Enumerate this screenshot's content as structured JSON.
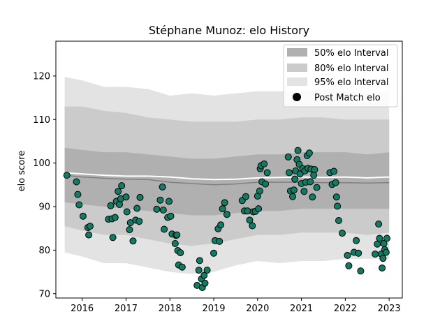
{
  "chart_data": {
    "type": "scatter",
    "title": "Stéphane Munoz: elo History",
    "xlabel": "",
    "ylabel": "elo score",
    "xlim": [
      2015.4,
      2023.3
    ],
    "ylim": [
      69,
      128
    ],
    "x_ticks": [
      2016,
      2017,
      2018,
      2019,
      2020,
      2021,
      2022,
      2023
    ],
    "y_ticks": [
      70,
      80,
      90,
      100,
      110,
      120
    ],
    "grid": false,
    "legend_position": "top-right",
    "legend": [
      {
        "label": "50% elo Interval",
        "color": "#b0b0b0"
      },
      {
        "label": "80% elo Interval",
        "color": "#cbcbcb"
      },
      {
        "label": "95% elo Interval",
        "color": "#e3e3e3"
      },
      {
        "label": "Post Match elo",
        "color": "#000000"
      }
    ],
    "colors": {
      "points": "#137a63",
      "point_edge": "#000000",
      "median": "#808080",
      "mean": "#ffffff"
    },
    "bands": {
      "x": [
        2015.6,
        2016.0,
        2016.5,
        2017.0,
        2017.5,
        2018.0,
        2018.5,
        2019.0,
        2019.5,
        2020.0,
        2020.5,
        2021.0,
        2021.5,
        2022.0,
        2022.5,
        2023.0
      ],
      "p95_low": [
        79.5,
        78.5,
        77,
        77,
        76,
        75,
        74.5,
        75,
        76.5,
        77.5,
        77,
        77.5,
        77.5,
        78,
        78,
        78
      ],
      "p95_high": [
        119.8,
        119,
        117.5,
        117.5,
        117,
        115.5,
        116,
        115.5,
        116,
        116.5,
        116.5,
        116.5,
        117,
        116.5,
        116,
        116.5
      ],
      "p80_low": [
        85.5,
        84.5,
        83.5,
        83.5,
        82.5,
        81.5,
        81,
        81.5,
        82.5,
        83.5,
        83.5,
        84,
        84,
        84,
        83.5,
        84
      ],
      "p80_high": [
        113,
        113,
        112,
        111.5,
        110.5,
        110,
        109.5,
        109.5,
        109.5,
        110,
        110,
        110.5,
        110.5,
        110,
        110,
        110
      ],
      "p50_low": [
        91,
        90.5,
        90,
        89.5,
        89,
        88.5,
        88,
        88,
        88.5,
        89,
        89,
        89.5,
        89.5,
        89.5,
        89.5,
        89.5
      ],
      "p50_high": [
        103.5,
        103,
        102.5,
        102.5,
        102,
        101.5,
        101,
        101,
        101.5,
        102,
        102,
        102.5,
        102.5,
        102.5,
        102,
        102.5
      ],
      "median": [
        97.2,
        96.8,
        96.5,
        96.3,
        96.2,
        95.6,
        95.3,
        95.0,
        95.2,
        95.6,
        95.6,
        95.6,
        95.5,
        95.5,
        95.4,
        95.5
      ],
      "mean": [
        97.8,
        97.5,
        97.2,
        97.0,
        97.0,
        96.8,
        96.4,
        96.2,
        96.3,
        96.6,
        96.7,
        96.8,
        96.7,
        96.8,
        96.6,
        96.8
      ]
    },
    "series": [
      {
        "name": "Post Match elo",
        "points": [
          [
            2015.65,
            97.2
          ],
          [
            2015.87,
            95.7
          ],
          [
            2015.9,
            92.8
          ],
          [
            2015.93,
            90.4
          ],
          [
            2016.02,
            87.8
          ],
          [
            2016.13,
            85.2
          ],
          [
            2016.15,
            83.5
          ],
          [
            2016.18,
            85.5
          ],
          [
            2016.6,
            87.1
          ],
          [
            2016.65,
            90.2
          ],
          [
            2016.68,
            87.2
          ],
          [
            2016.7,
            82.9
          ],
          [
            2016.75,
            87.5
          ],
          [
            2016.78,
            91.2
          ],
          [
            2016.82,
            93.5
          ],
          [
            2016.85,
            90.5
          ],
          [
            2016.88,
            91.8
          ],
          [
            2016.9,
            94.8
          ],
          [
            2017.0,
            92.2
          ],
          [
            2017.02,
            88.8
          ],
          [
            2017.08,
            84.7
          ],
          [
            2017.1,
            86.3
          ],
          [
            2017.16,
            82.1
          ],
          [
            2017.22,
            86.9
          ],
          [
            2017.25,
            89.6
          ],
          [
            2017.3,
            86.6
          ],
          [
            2017.32,
            92.1
          ],
          [
            2017.7,
            89.4
          ],
          [
            2017.78,
            91.5
          ],
          [
            2017.83,
            94.5
          ],
          [
            2017.85,
            89.2
          ],
          [
            2017.87,
            84.8
          ],
          [
            2017.95,
            87.5
          ],
          [
            2017.98,
            91.2
          ],
          [
            2018.02,
            87.8
          ],
          [
            2018.05,
            83.7
          ],
          [
            2018.12,
            81.5
          ],
          [
            2018.14,
            83.4
          ],
          [
            2018.16,
            83.5
          ],
          [
            2018.18,
            79.9
          ],
          [
            2018.2,
            76.6
          ],
          [
            2018.24,
            79.4
          ],
          [
            2018.28,
            76.1
          ],
          [
            2018.62,
            71.9
          ],
          [
            2018.66,
            75.4
          ],
          [
            2018.68,
            77.6
          ],
          [
            2018.72,
            73.4
          ],
          [
            2018.74,
            71.4
          ],
          [
            2018.78,
            74.2
          ],
          [
            2018.8,
            72.4
          ],
          [
            2018.85,
            75.4
          ],
          [
            2019.0,
            79.3
          ],
          [
            2019.03,
            82.2
          ],
          [
            2019.1,
            84.9
          ],
          [
            2019.13,
            82.0
          ],
          [
            2019.16,
            85.8
          ],
          [
            2019.2,
            89.5
          ],
          [
            2019.25,
            90.9
          ],
          [
            2019.3,
            88.2
          ],
          [
            2019.65,
            91.4
          ],
          [
            2019.7,
            89.0
          ],
          [
            2019.73,
            92.3
          ],
          [
            2019.77,
            89.0
          ],
          [
            2019.82,
            86.9
          ],
          [
            2019.88,
            85.6
          ],
          [
            2019.9,
            88.8
          ],
          [
            2019.95,
            88.9
          ],
          [
            2020.0,
            92.4
          ],
          [
            2020.02,
            89.5
          ],
          [
            2020.05,
            93.6
          ],
          [
            2020.06,
            98.7
          ],
          [
            2020.08,
            99.4
          ],
          [
            2020.1,
            95.7
          ],
          [
            2020.15,
            99.8
          ],
          [
            2020.18,
            95.2
          ],
          [
            2020.22,
            97.8
          ],
          [
            2020.7,
            101.4
          ],
          [
            2020.72,
            97.8
          ],
          [
            2020.75,
            93.6
          ],
          [
            2020.8,
            92.3
          ],
          [
            2020.83,
            93.8
          ],
          [
            2020.85,
            96.3
          ],
          [
            2020.87,
            98.2
          ],
          [
            2020.9,
            100.8
          ],
          [
            2020.92,
            102.9
          ],
          [
            2020.95,
            99.7
          ],
          [
            2020.97,
            97.5
          ],
          [
            2021.0,
            95.3
          ],
          [
            2021.03,
            98.7
          ],
          [
            2021.06,
            93.5
          ],
          [
            2021.08,
            98.2
          ],
          [
            2021.1,
            95.6
          ],
          [
            2021.13,
            101.7
          ],
          [
            2021.15,
            98.8
          ],
          [
            2021.18,
            102.3
          ],
          [
            2021.2,
            95.7
          ],
          [
            2021.22,
            98.6
          ],
          [
            2021.25,
            92.2
          ],
          [
            2021.28,
            97.2
          ],
          [
            2021.3,
            98.5
          ],
          [
            2021.35,
            94.4
          ],
          [
            2021.65,
            97.8
          ],
          [
            2021.7,
            95.1
          ],
          [
            2021.74,
            98.1
          ],
          [
            2021.78,
            95.5
          ],
          [
            2021.8,
            92.2
          ],
          [
            2021.82,
            90.1
          ],
          [
            2021.85,
            86.8
          ],
          [
            2021.93,
            83.9
          ],
          [
            2022.05,
            78.8
          ],
          [
            2022.08,
            76.4
          ],
          [
            2022.2,
            79.5
          ],
          [
            2022.25,
            82.2
          ],
          [
            2022.3,
            79.3
          ],
          [
            2022.35,
            75.2
          ],
          [
            2022.68,
            79.1
          ],
          [
            2022.73,
            81.4
          ],
          [
            2022.76,
            86.0
          ],
          [
            2022.78,
            82.7
          ],
          [
            2022.82,
            79.1
          ],
          [
            2022.84,
            75.9
          ],
          [
            2022.86,
            78.1
          ],
          [
            2022.88,
            81.5
          ],
          [
            2022.9,
            80.1
          ],
          [
            2022.93,
            79.5
          ],
          [
            2022.95,
            82.7
          ]
        ]
      }
    ]
  }
}
